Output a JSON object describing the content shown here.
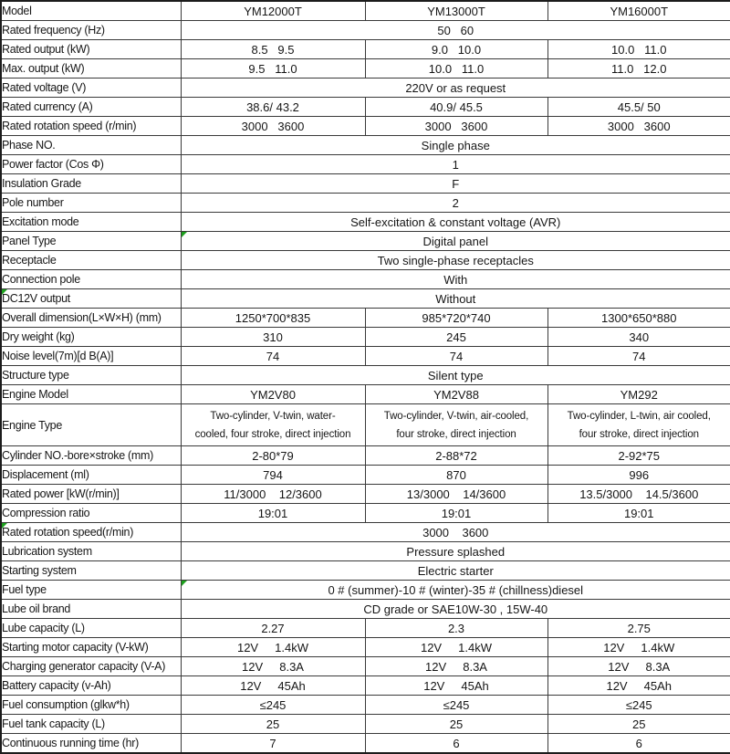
{
  "colors": {
    "border": "#3a3a3a",
    "outer_border": "#1c1c1c",
    "text": "#161616",
    "background": "#ffffff",
    "marker_green": "#1ea11e"
  },
  "table": {
    "rows": [
      {
        "label": "Model",
        "values": [
          "YM12000T",
          "YM13000T",
          "YM16000T"
        ]
      },
      {
        "label": "Rated frequency (Hz)",
        "span": "50   60"
      },
      {
        "label": "Rated output (kW)",
        "values": [
          "8.5   9.5",
          "9.0   10.0",
          "10.0   11.0"
        ]
      },
      {
        "label": "Max. output (kW)",
        "values": [
          "9.5   11.0",
          "10.0   11.0",
          "11.0   12.0"
        ]
      },
      {
        "label": "Rated voltage (V)",
        "span": "220V or as request"
      },
      {
        "label": "Rated currency (A)",
        "values": [
          "38.6/ 43.2",
          "40.9/ 45.5",
          "45.5/ 50"
        ]
      },
      {
        "label": "Rated rotation speed (r/min)",
        "values": [
          "3000   3600",
          "3000   3600",
          "3000   3600"
        ]
      },
      {
        "label": "Phase NO.",
        "span": "Single phase"
      },
      {
        "label": "Power factor (Cos Φ)",
        "span": "1"
      },
      {
        "label": "Insulation Grade",
        "span": "F"
      },
      {
        "label": "Pole number",
        "span": "2"
      },
      {
        "label": "Excitation mode",
        "span": "Self-excitation & constant voltage (AVR)"
      },
      {
        "label": "Panel Type",
        "span": "Digital panel",
        "marker": "value"
      },
      {
        "label": "Receptacle",
        "span": "Two single-phase receptacles"
      },
      {
        "label": "Connection pole",
        "span": "With"
      },
      {
        "label": "DC12V output",
        "span": "Without",
        "marker": "label"
      },
      {
        "label": "Overall dimension(L×W×H) (mm)",
        "values": [
          "1250*700*835",
          "985*720*740",
          "1300*650*880"
        ]
      },
      {
        "label": "Dry weight (kg)",
        "values": [
          "310",
          "245",
          "340"
        ]
      },
      {
        "label": "Noise level(7m)[d B(A)]",
        "values": [
          "74",
          "74",
          "74"
        ]
      },
      {
        "label": "Structure type",
        "span": "Silent type"
      },
      {
        "label": "Engine Model",
        "values": [
          "YM2V80",
          "YM2V88",
          "YM292"
        ]
      },
      {
        "label": "Engine Type",
        "tall": true,
        "values": [
          "Two-cylinder, V-twin, water-\ncooled, four stroke, direct injection",
          "Two-cylinder, V-twin, air-cooled,\nfour stroke, direct injection",
          "Two-cylinder, L-twin, air cooled,\nfour stroke, direct injection"
        ]
      },
      {
        "label": "Cylinder NO.-bore×stroke (mm)",
        "values": [
          "2-80*79",
          "2-88*72",
          "2-92*75"
        ]
      },
      {
        "label": "Displacement (ml)",
        "values": [
          "794",
          "870",
          "996"
        ]
      },
      {
        "label": "Rated power [kW(r/min)]",
        "values": [
          "11/3000    12/3600",
          "13/3000    14/3600",
          "13.5/3000    14.5/3600"
        ]
      },
      {
        "label": "Compression ratio",
        "values": [
          "19:01",
          "19:01",
          "19:01"
        ]
      },
      {
        "label": "Rated rotation speed(r/min)",
        "span": "3000    3600",
        "marker": "label"
      },
      {
        "label": "Lubrication system",
        "span": "Pressure splashed"
      },
      {
        "label": "Starting system",
        "span": "Electric starter"
      },
      {
        "label": "Fuel type",
        "span": "0 # (summer)-10 # (winter)-35 # (chillness)diesel",
        "marker": "value"
      },
      {
        "label": "Lube oil brand",
        "span": "CD grade or SAE10W-30 , 15W-40"
      },
      {
        "label": "Lube capacity (L)",
        "values": [
          "2.27",
          "2.3",
          "2.75"
        ]
      },
      {
        "label": "Starting motor capacity (V-kW)",
        "values": [
          "12V     1.4kW",
          "12V     1.4kW",
          "12V     1.4kW"
        ]
      },
      {
        "label": "Charging generator capacity (V-A)",
        "values": [
          "12V     8.3A",
          "12V     8.3A",
          "12V     8.3A"
        ]
      },
      {
        "label": "Battery capacity (v-Ah)",
        "values": [
          "12V     45Ah",
          "12V     45Ah",
          "12V     45Ah"
        ]
      },
      {
        "label": "Fuel consumption (glkw*h)",
        "values": [
          "≤245",
          "≤245",
          "≤245"
        ]
      },
      {
        "label": "Fuel tank capacity (L)",
        "values": [
          "25",
          "25",
          "25"
        ]
      },
      {
        "label": "Continuous running time (hr)",
        "values": [
          "7",
          "6",
          "6"
        ]
      }
    ]
  }
}
